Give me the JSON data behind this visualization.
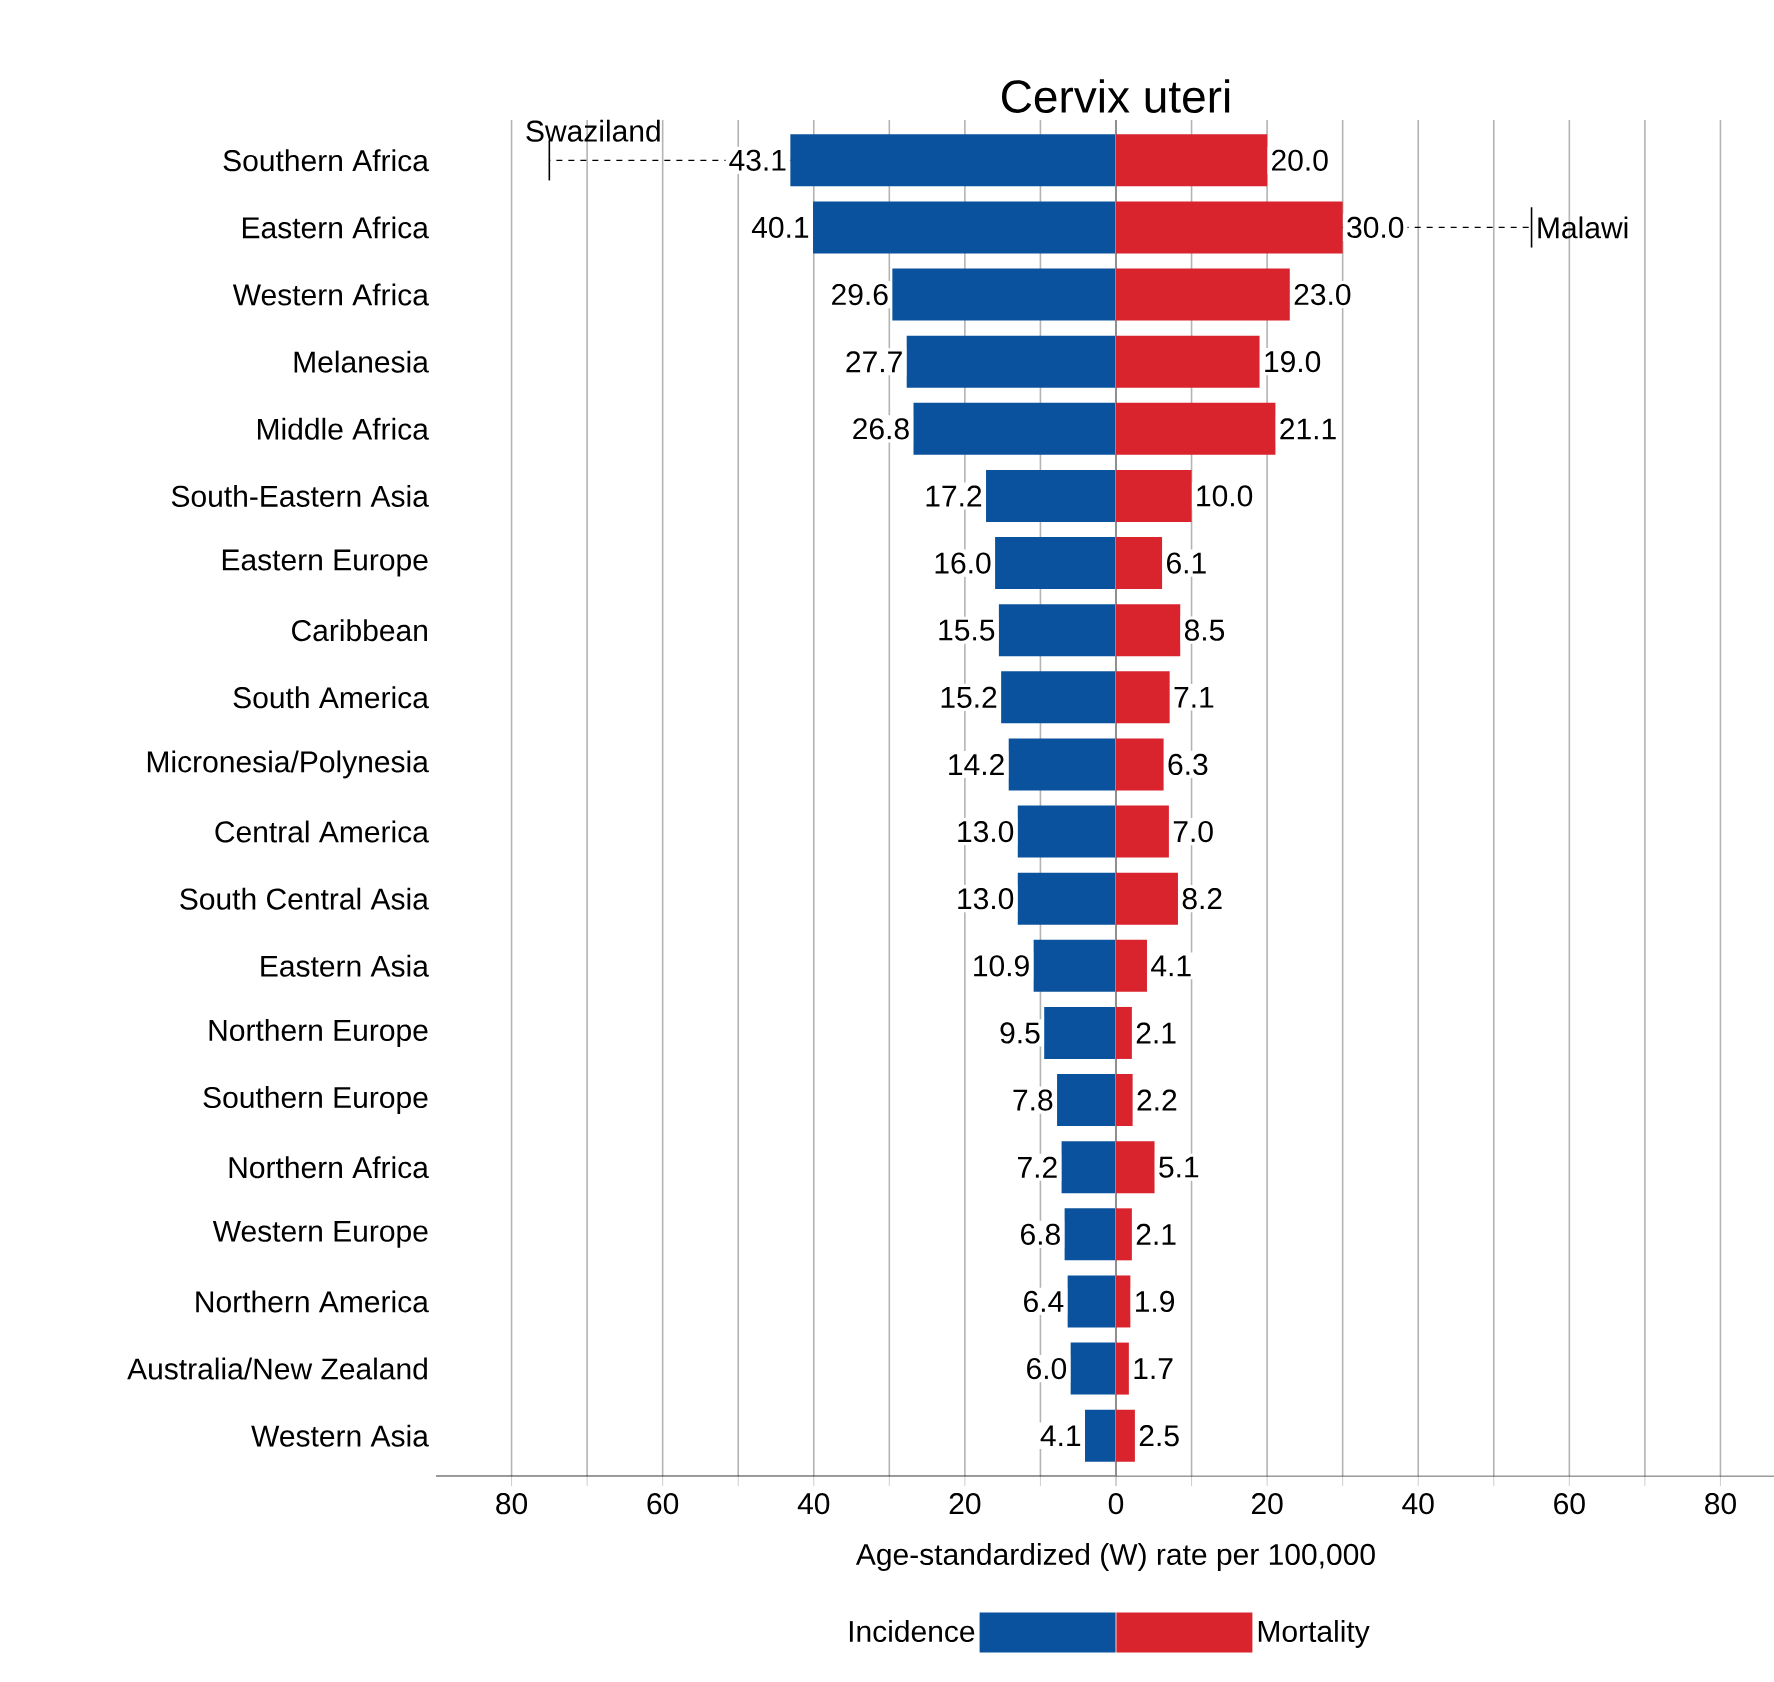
{
  "chart_data": [
    {
      "type": "bar",
      "orientation": "horizontal",
      "title": "Cervix uteri",
      "xlabel": "Age-standardized (W) rate per 100,000",
      "categories": [
        "Southern Africa",
        "Eastern Africa",
        "Western Africa",
        "Melanesia",
        "Middle Africa",
        "South-Eastern Asia",
        "Eastern Europe",
        "Caribbean",
        "South America",
        "Micronesia/Polynesia",
        "Central America",
        "South Central Asia",
        "Eastern Asia",
        "Northern Europe",
        "Southern Europe",
        "Northern Africa",
        "Western Europe",
        "Northern America",
        "Australia/New Zealand",
        "Western Asia"
      ],
      "series": [
        {
          "name": "Incidence",
          "color": "#0b529e",
          "values": [
            43.1,
            40.1,
            29.6,
            27.7,
            26.8,
            17.2,
            16.0,
            15.5,
            15.2,
            14.2,
            13.0,
            13.0,
            10.9,
            9.5,
            7.8,
            7.2,
            6.8,
            6.4,
            6.0,
            4.1
          ],
          "value_labels": [
            "43.1",
            "40.1",
            "29.6",
            "27.7",
            "26.8",
            "17.2",
            "16.0",
            "15.5",
            "15.2",
            "14.2",
            "13.0",
            "13.0",
            "10.9",
            "9.5",
            "7.8",
            "7.2",
            "6.8",
            "6.4",
            "6.0",
            "4.1"
          ],
          "errors": [
            [
              43.1,
              75
            ],
            null,
            null,
            null,
            null,
            null,
            null,
            null,
            null,
            null,
            null,
            null,
            null,
            null,
            null,
            null,
            null,
            null,
            null,
            null
          ]
        }
      ],
      "xlim": [
        90,
        0
      ],
      "xticks": [
        80,
        {
          "value": 70,
          "label": null
        },
        60,
        {
          "value": 50,
          "label": null
        },
        40,
        {
          "value": 30,
          "label": null
        },
        20,
        {
          "value": 10,
          "label": null
        },
        0
      ],
      "ref_lines": [
        {
          "axis": "x",
          "value": 0,
          "color": "#000000"
        }
      ],
      "annotations": [
        {
          "text": "Swaziland",
          "x": 75,
          "y": "Southern Africa"
        }
      ],
      "grid": "x",
      "legend": "bottom"
    },
    {
      "type": "bar",
      "orientation": "horizontal",
      "categories": [
        "Southern Africa",
        "Eastern Africa",
        "Western Africa",
        "Melanesia",
        "Middle Africa",
        "South-Eastern Asia",
        "Eastern Europe",
        "Caribbean",
        "South America",
        "Micronesia/Polynesia",
        "Central America",
        "South Central Asia",
        "Eastern Asia",
        "Northern Europe",
        "Southern Europe",
        "Northern Africa",
        "Western Europe",
        "Northern America",
        "Australia/New Zealand",
        "Western Asia"
      ],
      "series": [
        {
          "name": "Mortality",
          "color": "#d9232d",
          "values": [
            20.0,
            30.0,
            23.0,
            19.0,
            21.1,
            10.0,
            6.1,
            8.5,
            7.1,
            6.3,
            7.0,
            8.2,
            4.1,
            2.1,
            2.2,
            5.1,
            2.1,
            1.9,
            1.7,
            2.5
          ],
          "value_labels": [
            "20.0",
            "30.0",
            "23.0",
            "19.0",
            "21.1",
            "10.0",
            "6.1",
            "8.5",
            "7.1",
            "6.3",
            "7.0",
            "8.2",
            "4.1",
            "2.1",
            "2.2",
            "5.1",
            "2.1",
            "1.9",
            "1.7",
            "2.5"
          ],
          "errors": [
            null,
            [
              30.0,
              55
            ],
            null,
            null,
            null,
            null,
            null,
            null,
            null,
            null,
            null,
            null,
            null,
            null,
            null,
            null,
            null,
            null,
            null,
            null
          ]
        }
      ],
      "xlim": [
        0,
        88
      ],
      "xticks": [
        {
          "value": 0,
          "label": null
        },
        {
          "value": 10,
          "label": null
        },
        20,
        {
          "value": 30,
          "label": null
        },
        40,
        {
          "value": 50,
          "label": null
        },
        60,
        {
          "value": 70,
          "label": null
        },
        80
      ],
      "annotations": [
        {
          "text": "Malawi",
          "x": 55,
          "y": "Eastern Africa"
        }
      ],
      "tick_labels": "x",
      "grid": "x",
      "legend": "bottom"
    }
  ]
}
